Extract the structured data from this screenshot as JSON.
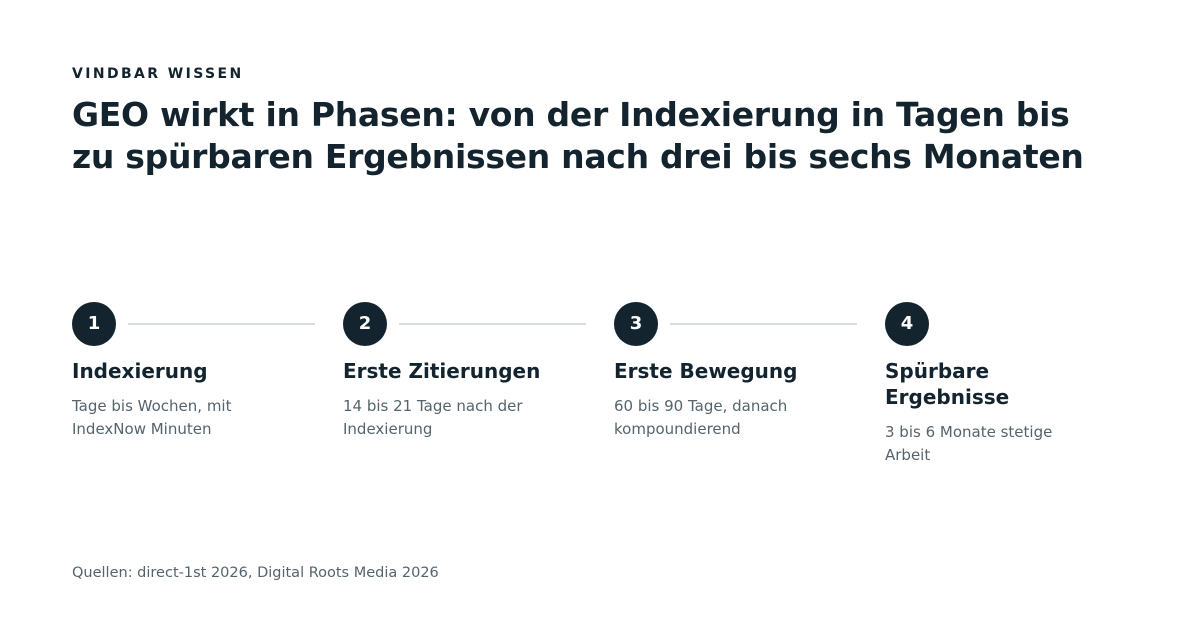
{
  "eyebrow": "VINDBAR WISSEN",
  "headline": "GEO wirkt in Phasen: von der Indexierung in Tagen bis zu spürbaren Ergebnissen nach drei bis sechs Monaten",
  "steps": [
    {
      "number": "1",
      "title": "Indexierung",
      "description": "Tage bis Wochen, mit IndexNow Minuten"
    },
    {
      "number": "2",
      "title": "Erste Zitierungen",
      "description": "14 bis 21 Tage nach der Indexierung"
    },
    {
      "number": "3",
      "title": "Erste Bewegung",
      "description": "60 bis 90 Tage, danach kompoundierend"
    },
    {
      "number": "4",
      "title": "Spürbare Ergebnisse",
      "description": "3 bis 6 Monate stetige Arbeit"
    }
  ],
  "sources": "Quellen: direct-1st 2026, Digital Roots Media 2026",
  "colors": {
    "primary": "#13242e",
    "muted_text": "#55646c",
    "connector_line": "#d9dde0",
    "background": "#ffffff"
  }
}
